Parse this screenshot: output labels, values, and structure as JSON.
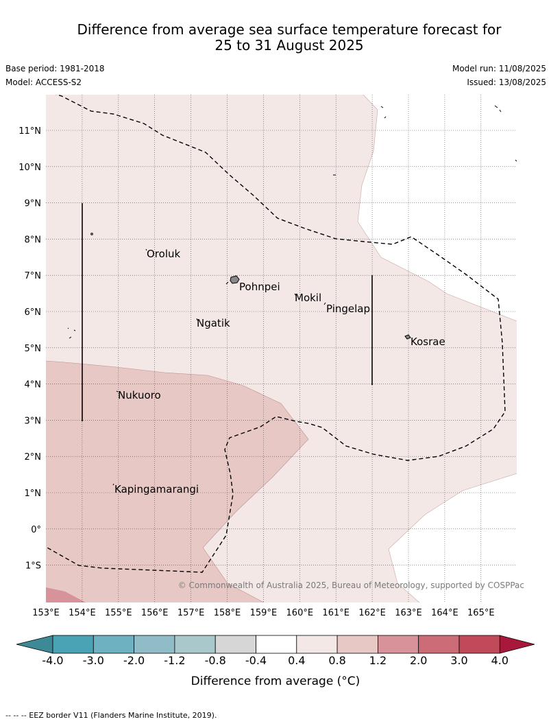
{
  "title": {
    "line1": "Difference from average sea surface temperature forecast for",
    "line2": "25 to 31 August 2025"
  },
  "meta": {
    "base_period": "Base period: 1981-2018",
    "model": "Model: ACCESS-S2",
    "model_run": "Model run: 11/08/2025",
    "issued": "Issued: 13/08/2025"
  },
  "axes": {
    "lat_labels": [
      "11°N",
      "10°N",
      "9°N",
      "8°N",
      "7°N",
      "6°N",
      "5°N",
      "4°N",
      "3°N",
      "2°N",
      "1°N",
      "0°",
      "1°S"
    ],
    "lon_labels": [
      "153°E",
      "154°E",
      "155°E",
      "156°E",
      "157°E",
      "158°E",
      "159°E",
      "160°E",
      "161°E",
      "162°E",
      "163°E",
      "164°E",
      "165°E"
    ]
  },
  "places": [
    {
      "name": "Oroluk"
    },
    {
      "name": "Pohnpei"
    },
    {
      "name": "Mokil"
    },
    {
      "name": "Pingelap"
    },
    {
      "name": "Ngatik"
    },
    {
      "name": "Kosrae"
    },
    {
      "name": "Nukuoro"
    },
    {
      "name": "Kapingamarangi"
    }
  ],
  "copyright": "© Commonwealth of Australia 2025, Bureau of Meteorology, supported by COSPPac",
  "colorbar": {
    "title": "Difference from average (°C)",
    "ticks": [
      "-4.0",
      "-3.0",
      "-2.0",
      "-1.2",
      "-0.8",
      "-0.4",
      "0.4",
      "0.8",
      "1.2",
      "2.0",
      "3.0",
      "4.0"
    ],
    "colors": [
      "#3d8a96",
      "#4aa3b4",
      "#6eb1c0",
      "#8fbcc7",
      "#a9c8cc",
      "#d6d6d6",
      "#ffffff",
      "#f4e8e7",
      "#e8c8c4",
      "#d8939a",
      "#cc6c76",
      "#c04a5a",
      "#a8183a"
    ]
  },
  "footer": "--  --  -- EEZ border V11 (Flanders Marine Institute, 2019)."
}
